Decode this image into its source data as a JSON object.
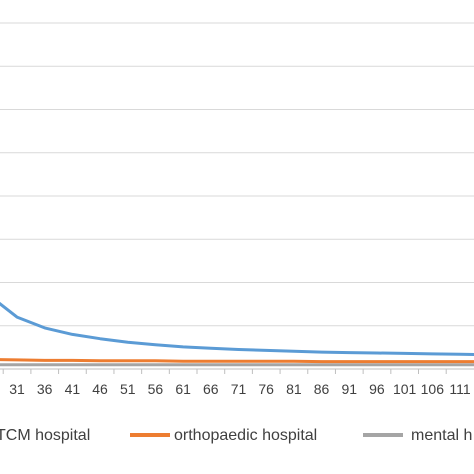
{
  "chart_data": {
    "type": "line",
    "title": "",
    "xlabel": "",
    "ylabel": "",
    "x_ticks": [
      "31",
      "36",
      "41",
      "46",
      "51",
      "56",
      "61",
      "66",
      "71",
      "76",
      "81",
      "86",
      "91",
      "96",
      "101",
      "106",
      "111"
    ],
    "grid": "horizontal",
    "legend_placement": "bottom",
    "series": [
      {
        "name": "TCM hospital",
        "color": "#5B9BD5",
        "x": [
          27,
          31,
          36,
          41,
          46,
          51,
          56,
          61,
          66,
          71,
          76,
          81,
          86,
          91,
          96,
          101,
          106,
          111,
          116
        ],
        "y": [
          16,
          12,
          9.5,
          8.0,
          7.0,
          6.2,
          5.6,
          5.1,
          4.8,
          4.5,
          4.3,
          4.1,
          3.9,
          3.8,
          3.7,
          3.6,
          3.5,
          3.4,
          3.3
        ]
      },
      {
        "name": "orthopaedic hospital",
        "color": "#ED7D31",
        "x": [
          27,
          31,
          36,
          41,
          46,
          51,
          56,
          61,
          66,
          71,
          76,
          81,
          86,
          91,
          96,
          101,
          106,
          111,
          116
        ],
        "y": [
          2.2,
          2.1,
          2.0,
          2.0,
          1.9,
          1.9,
          1.9,
          1.8,
          1.8,
          1.8,
          1.8,
          1.8,
          1.7,
          1.7,
          1.7,
          1.7,
          1.7,
          1.7,
          1.7
        ]
      },
      {
        "name": "mental h",
        "color": "#A5A5A5",
        "x": [
          27,
          31,
          36,
          41,
          46,
          51,
          56,
          61,
          66,
          71,
          76,
          81,
          86,
          91,
          96,
          101,
          106,
          111,
          116
        ],
        "y": [
          1.0,
          1.0,
          1.0,
          1.0,
          1.0,
          1.0,
          1.0,
          1.0,
          1.0,
          1.0,
          1.0,
          1.0,
          1.0,
          1.0,
          1.0,
          1.0,
          1.0,
          1.0,
          1.0
        ]
      }
    ]
  }
}
